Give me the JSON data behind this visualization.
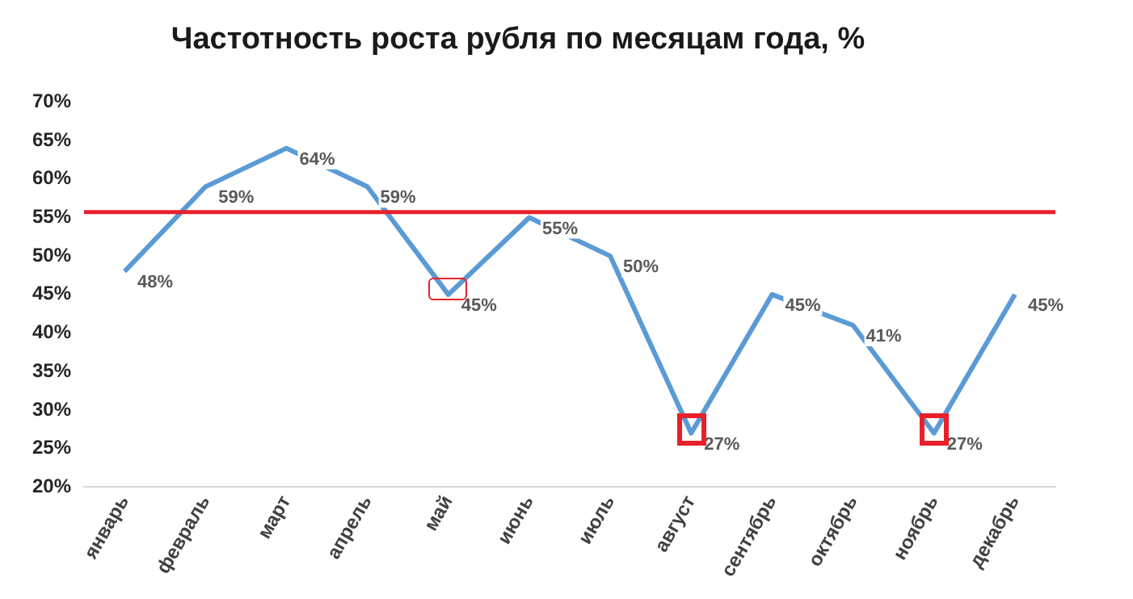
{
  "chart_data": {
    "type": "line",
    "title": "Частотность роста рубля по месяцам года, %",
    "categories": [
      "январь",
      "февраль",
      "март",
      "апрель",
      "май",
      "июнь",
      "июль",
      "август",
      "сентябрь",
      "октябрь",
      "ноябрь",
      "декабрь"
    ],
    "series": [
      {
        "color": "#5b9bd5",
        "values": [
          48,
          59,
          64,
          59,
          45,
          55,
          50,
          27,
          45,
          41,
          27,
          45
        ],
        "value_labels": [
          "48%",
          "59%",
          "64%",
          "59%",
          "45%",
          "55%",
          "50%",
          "27%",
          "45%",
          "41%",
          "27%",
          "45%"
        ]
      }
    ],
    "ylim": [
      20,
      70
    ],
    "yticks": [
      {
        "value": 20,
        "label": "20%"
      },
      {
        "value": 25,
        "label": "25%"
      },
      {
        "value": 30,
        "label": "30%"
      },
      {
        "value": 35,
        "label": "35%"
      },
      {
        "value": 40,
        "label": "40%"
      },
      {
        "value": 45,
        "label": "45%"
      },
      {
        "value": 50,
        "label": "50%"
      },
      {
        "value": 55,
        "label": "55%"
      },
      {
        "value": 60,
        "label": "60%"
      },
      {
        "value": 65,
        "label": "65%"
      },
      {
        "value": 70,
        "label": "70%"
      }
    ],
    "ref_lines": [
      {
        "axis": "y",
        "value": 55.7,
        "color": "#e8202a"
      }
    ],
    "grid": false,
    "legend": false,
    "marker": "none",
    "line_style": "solid"
  }
}
